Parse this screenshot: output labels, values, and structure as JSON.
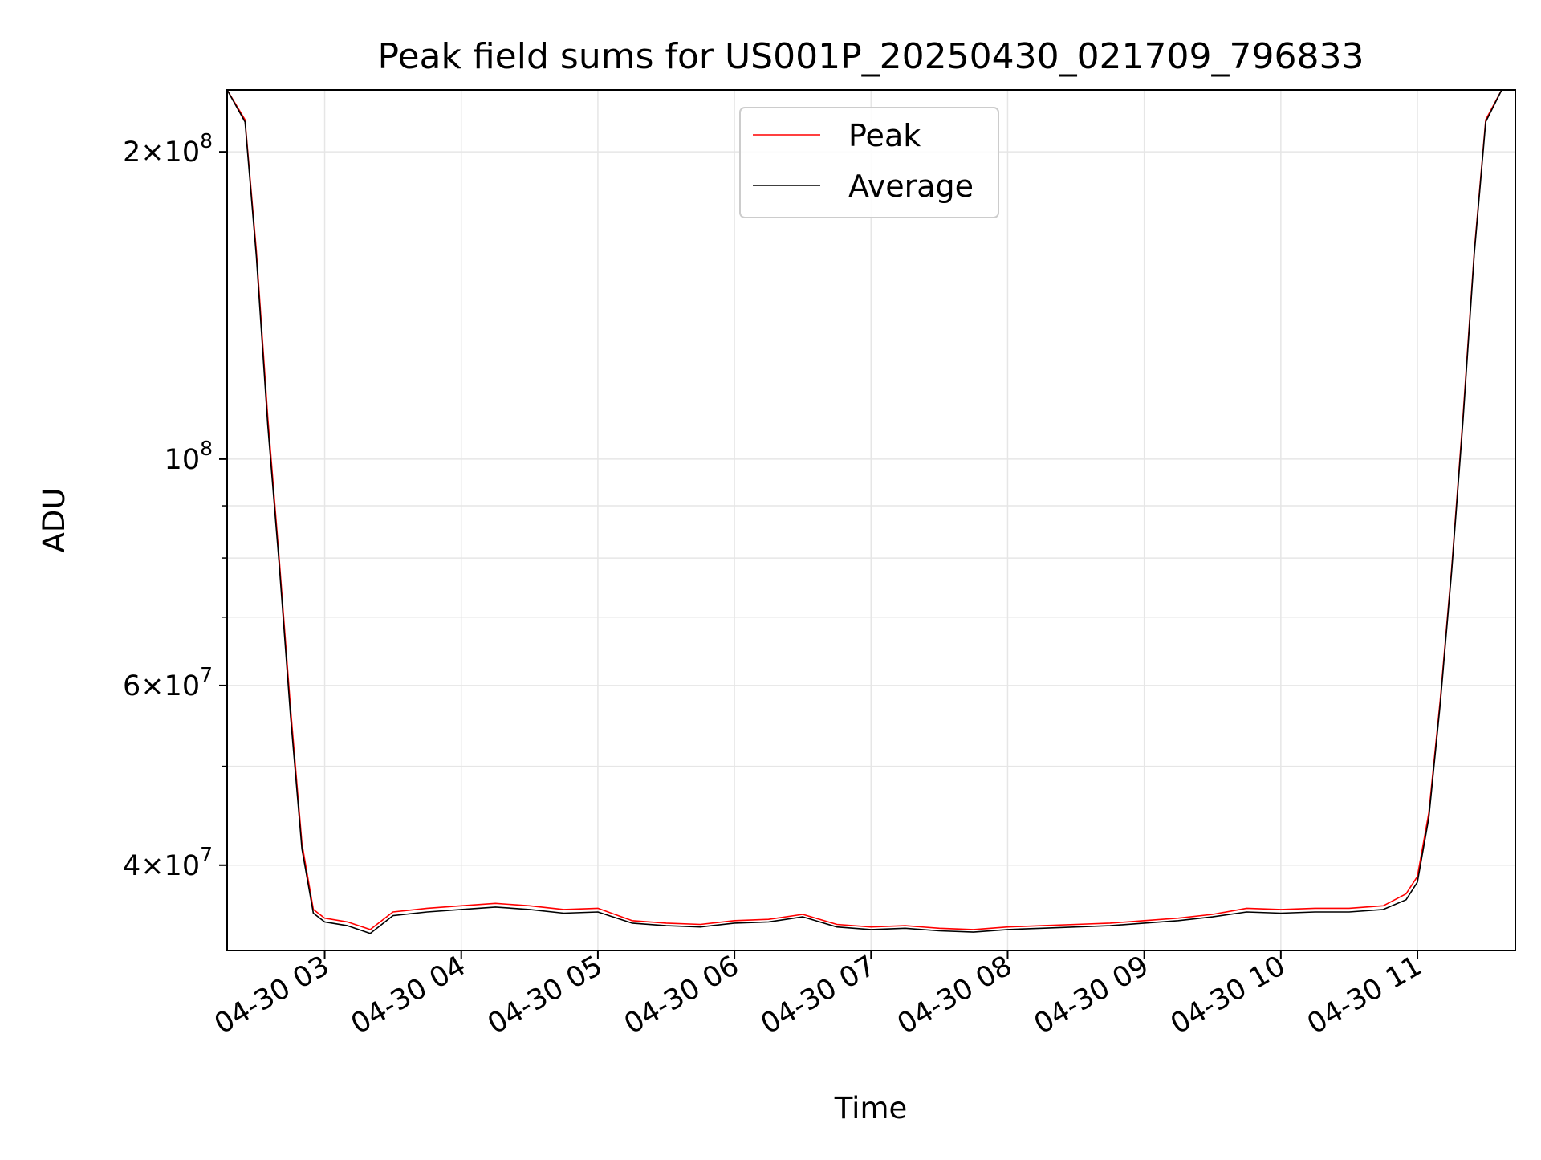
{
  "chart_data": {
    "type": "line",
    "title": "Peak field sums for US001P_20250430_021709_796833",
    "xlabel": "Time",
    "ylabel": "ADU",
    "y_scale": "log",
    "ylim": [
      33000000,
      230000000
    ],
    "xlim": [
      "2025-04-30 02:17:09",
      "2025-04-30 11:43:00"
    ],
    "x_ticks": [
      "04-30 03",
      "04-30 04",
      "04-30 05",
      "04-30 06",
      "04-30 07",
      "04-30 08",
      "04-30 09",
      "04-30 10",
      "04-30 11"
    ],
    "y_tick_values": [
      40000000,
      60000000,
      100000000,
      200000000
    ],
    "y_tick_labels": [
      {
        "mant": "4",
        "times": "×",
        "base": "10",
        "exp": "7"
      },
      {
        "mant": "6",
        "times": "×",
        "base": "10",
        "exp": "7"
      },
      {
        "mant": "",
        "times": "",
        "base": "10",
        "exp": "8"
      },
      {
        "mant": "2",
        "times": "×",
        "base": "10",
        "exp": "8"
      }
    ],
    "grid": true,
    "legend_position": "top-center",
    "series": [
      {
        "name": "Peak",
        "color": "#ff0000",
        "x": [
          "2025-04-30 02:17:09",
          "2025-04-30 02:25:00",
          "2025-04-30 02:30:00",
          "2025-04-30 02:35:00",
          "2025-04-30 02:40:00",
          "2025-04-30 02:45:00",
          "2025-04-30 02:50:00",
          "2025-04-30 02:55:00",
          "2025-04-30 03:00:00",
          "2025-04-30 03:10:00",
          "2025-04-30 03:20:00",
          "2025-04-30 03:30:00",
          "2025-04-30 03:45:00",
          "2025-04-30 04:00:00",
          "2025-04-30 04:15:00",
          "2025-04-30 04:30:00",
          "2025-04-30 04:45:00",
          "2025-04-30 05:00:00",
          "2025-04-30 05:15:00",
          "2025-04-30 05:30:00",
          "2025-04-30 05:45:00",
          "2025-04-30 06:00:00",
          "2025-04-30 06:15:00",
          "2025-04-30 06:30:00",
          "2025-04-30 06:45:00",
          "2025-04-30 07:00:00",
          "2025-04-30 07:15:00",
          "2025-04-30 07:30:00",
          "2025-04-30 07:45:00",
          "2025-04-30 08:00:00",
          "2025-04-30 08:15:00",
          "2025-04-30 08:30:00",
          "2025-04-30 08:45:00",
          "2025-04-30 09:00:00",
          "2025-04-30 09:15:00",
          "2025-04-30 09:30:00",
          "2025-04-30 09:45:00",
          "2025-04-30 10:00:00",
          "2025-04-30 10:15:00",
          "2025-04-30 10:30:00",
          "2025-04-30 10:45:00",
          "2025-04-30 10:55:00",
          "2025-04-30 11:00:00",
          "2025-04-30 11:05:00",
          "2025-04-30 11:10:00",
          "2025-04-30 11:15:00",
          "2025-04-30 11:20:00",
          "2025-04-30 11:25:00",
          "2025-04-30 11:30:00",
          "2025-04-30 11:37:00"
        ],
        "values": [
          230000000,
          215000000,
          160000000,
          110000000,
          80000000,
          57000000,
          42000000,
          36200000,
          35500000,
          35200000,
          34600000,
          36000000,
          36300000,
          36500000,
          36700000,
          36500000,
          36200000,
          36300000,
          35300000,
          35100000,
          35000000,
          35300000,
          35400000,
          35800000,
          35000000,
          34800000,
          34900000,
          34700000,
          34600000,
          34800000,
          34900000,
          35000000,
          35100000,
          35300000,
          35500000,
          35800000,
          36300000,
          36200000,
          36300000,
          36300000,
          36500000,
          37500000,
          39000000,
          45000000,
          58000000,
          78000000,
          110000000,
          160000000,
          215000000,
          230000000
        ]
      },
      {
        "name": "Average",
        "color": "#000000",
        "x": [
          "2025-04-30 02:17:09",
          "2025-04-30 02:25:00",
          "2025-04-30 02:30:00",
          "2025-04-30 02:35:00",
          "2025-04-30 02:40:00",
          "2025-04-30 02:45:00",
          "2025-04-30 02:50:00",
          "2025-04-30 02:55:00",
          "2025-04-30 03:00:00",
          "2025-04-30 03:10:00",
          "2025-04-30 03:20:00",
          "2025-04-30 03:30:00",
          "2025-04-30 03:45:00",
          "2025-04-30 04:00:00",
          "2025-04-30 04:15:00",
          "2025-04-30 04:30:00",
          "2025-04-30 04:45:00",
          "2025-04-30 05:00:00",
          "2025-04-30 05:15:00",
          "2025-04-30 05:30:00",
          "2025-04-30 05:45:00",
          "2025-04-30 06:00:00",
          "2025-04-30 06:15:00",
          "2025-04-30 06:30:00",
          "2025-04-30 06:45:00",
          "2025-04-30 07:00:00",
          "2025-04-30 07:15:00",
          "2025-04-30 07:30:00",
          "2025-04-30 07:45:00",
          "2025-04-30 08:00:00",
          "2025-04-30 08:15:00",
          "2025-04-30 08:30:00",
          "2025-04-30 08:45:00",
          "2025-04-30 09:00:00",
          "2025-04-30 09:15:00",
          "2025-04-30 09:30:00",
          "2025-04-30 09:45:00",
          "2025-04-30 10:00:00",
          "2025-04-30 10:15:00",
          "2025-04-30 10:30:00",
          "2025-04-30 10:45:00",
          "2025-04-30 10:55:00",
          "2025-04-30 11:00:00",
          "2025-04-30 11:05:00",
          "2025-04-30 11:10:00",
          "2025-04-30 11:15:00",
          "2025-04-30 11:20:00",
          "2025-04-30 11:25:00",
          "2025-04-30 11:30:00",
          "2025-04-30 11:37:00"
        ],
        "values": [
          230000000,
          214000000,
          158000000,
          108000000,
          79000000,
          56000000,
          41500000,
          35900000,
          35200000,
          34900000,
          34300000,
          35700000,
          36000000,
          36200000,
          36400000,
          36200000,
          35900000,
          36000000,
          35100000,
          34900000,
          34800000,
          35100000,
          35200000,
          35600000,
          34800000,
          34600000,
          34700000,
          34500000,
          34400000,
          34600000,
          34700000,
          34800000,
          34900000,
          35100000,
          35300000,
          35600000,
          36000000,
          35900000,
          36000000,
          36000000,
          36200000,
          37000000,
          38500000,
          44500000,
          57500000,
          77500000,
          109000000,
          159000000,
          214000000,
          230000000
        ]
      }
    ],
    "legend": [
      "Peak",
      "Average"
    ]
  }
}
